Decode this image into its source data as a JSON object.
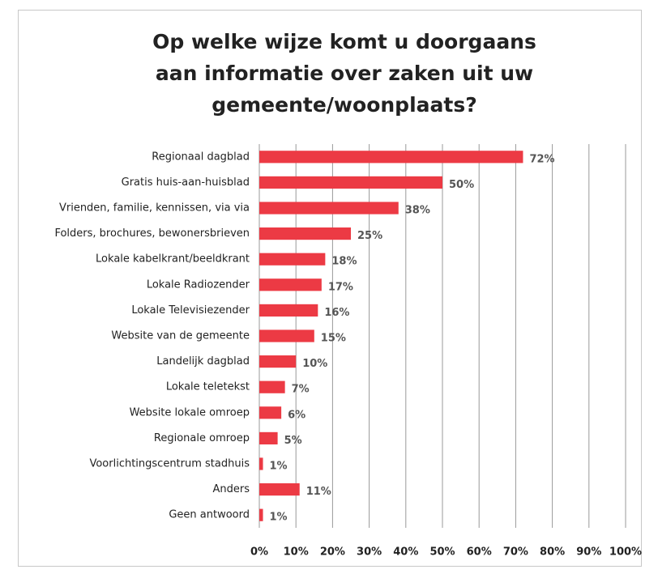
{
  "chart_data": {
    "type": "bar",
    "orientation": "horizontal",
    "title": "Op welke wijze komt u doorgaans aan informatie over zaken uit uw gemeente/woonplaats?",
    "categories": [
      "Regionaal dagblad",
      "Gratis huis-aan-huisblad",
      "Vrienden, familie, kennissen, via via",
      "Folders, brochures, bewonersbrieven",
      "Lokale kabelkrant/beeldkrant",
      "Lokale Radiozender",
      "Lokale Televisiezender",
      "Website van de gemeente",
      "Landelijk dagblad",
      "Lokale teletekst",
      "Website lokale omroep",
      "Regionale omroep",
      "Voorlichtingscentrum stadhuis",
      "Anders",
      "Geen antwoord"
    ],
    "values": [
      72,
      50,
      38,
      25,
      18,
      17,
      16,
      15,
      10,
      7,
      6,
      5,
      1,
      11,
      1
    ],
    "value_labels": [
      "72%",
      "50%",
      "38%",
      "25%",
      "18%",
      "17%",
      "16%",
      "15%",
      "10%",
      "7%",
      "6%",
      "5%",
      "1%",
      "11%",
      "1%"
    ],
    "color": "#ec3a44",
    "xlim": [
      0,
      100
    ],
    "xticks": [
      {
        "value": 0,
        "label": "0%"
      },
      {
        "value": 10,
        "label": "10%"
      },
      {
        "value": 20,
        "label": "20%"
      },
      {
        "value": 30,
        "label": "30%"
      },
      {
        "value": 40,
        "label": "40%"
      },
      {
        "value": 50,
        "label": "50%"
      },
      {
        "value": 60,
        "label": "60%"
      },
      {
        "value": 70,
        "label": "70%"
      },
      {
        "value": 80,
        "label": "80%"
      },
      {
        "value": 90,
        "label": "90%"
      },
      {
        "value": 100,
        "label": "100%"
      }
    ],
    "grid": true
  }
}
